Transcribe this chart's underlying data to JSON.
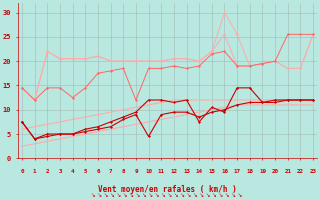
{
  "x": [
    0,
    1,
    2,
    3,
    4,
    5,
    6,
    7,
    8,
    9,
    10,
    11,
    12,
    13,
    14,
    15,
    16,
    17,
    18,
    19,
    20,
    21,
    22,
    23
  ],
  "line_dark1": [
    7.5,
    4.0,
    4.5,
    5.0,
    5.0,
    6.0,
    6.5,
    7.5,
    8.5,
    9.5,
    12.0,
    12.0,
    11.5,
    12.0,
    7.5,
    10.5,
    9.5,
    14.5,
    14.5,
    11.5,
    11.5,
    12.0,
    12.0,
    12.0
  ],
  "line_dark2": [
    7.5,
    4.0,
    5.0,
    5.0,
    5.0,
    5.5,
    6.0,
    6.5,
    8.0,
    9.0,
    4.5,
    9.0,
    9.5,
    9.5,
    8.5,
    9.5,
    10.0,
    11.0,
    11.5,
    11.5,
    12.0,
    12.0,
    12.0,
    12.0
  ],
  "trend_low": [
    2.5,
    3.0,
    3.5,
    4.0,
    4.5,
    5.0,
    5.5,
    6.0,
    6.5,
    7.0,
    7.5,
    8.0,
    8.5,
    9.0,
    9.5,
    10.0,
    10.5,
    11.0,
    11.0,
    11.0,
    11.0,
    11.0,
    11.0,
    11.0
  ],
  "trend_high": [
    6.0,
    6.5,
    7.0,
    7.5,
    8.0,
    8.5,
    9.0,
    9.5,
    10.0,
    10.5,
    11.0,
    11.5,
    12.0,
    12.0,
    12.0,
    12.0,
    12.0,
    12.0,
    12.0,
    12.0,
    12.0,
    12.0,
    12.0,
    12.0
  ],
  "line_med1": [
    14.5,
    12.0,
    14.5,
    14.5,
    12.5,
    14.5,
    17.5,
    18.0,
    18.5,
    12.0,
    18.5,
    18.5,
    19.0,
    18.5,
    19.0,
    21.5,
    22.0,
    19.0,
    19.0,
    19.5,
    20.0,
    25.5,
    25.5,
    25.5
  ],
  "line_light1": [
    14.5,
    12.0,
    22.0,
    20.5,
    20.5,
    20.5,
    21.0,
    20.0,
    20.0,
    20.0,
    20.0,
    20.0,
    20.5,
    20.5,
    20.0,
    22.0,
    25.5,
    19.0,
    19.0,
    19.5,
    20.0,
    18.5,
    18.5,
    25.5
  ],
  "line_light2": [
    14.5,
    12.0,
    22.0,
    20.5,
    20.5,
    20.5,
    21.0,
    20.0,
    20.0,
    20.0,
    20.0,
    20.0,
    20.5,
    20.5,
    20.0,
    22.0,
    30.0,
    25.5,
    19.0,
    19.5,
    20.0,
    18.5,
    18.5,
    25.5
  ],
  "background_color": "#b8e8e0",
  "grid_color": "#999999",
  "color_dark": "#cc0000",
  "color_medium": "#ff6666",
  "color_light": "#ffaaaa",
  "xlabel": "Vent moyen/en rafales ( km/h )",
  "yticks": [
    0,
    5,
    10,
    15,
    20,
    25,
    30
  ],
  "xlim": [
    0,
    23
  ],
  "ylim": [
    0,
    32
  ]
}
